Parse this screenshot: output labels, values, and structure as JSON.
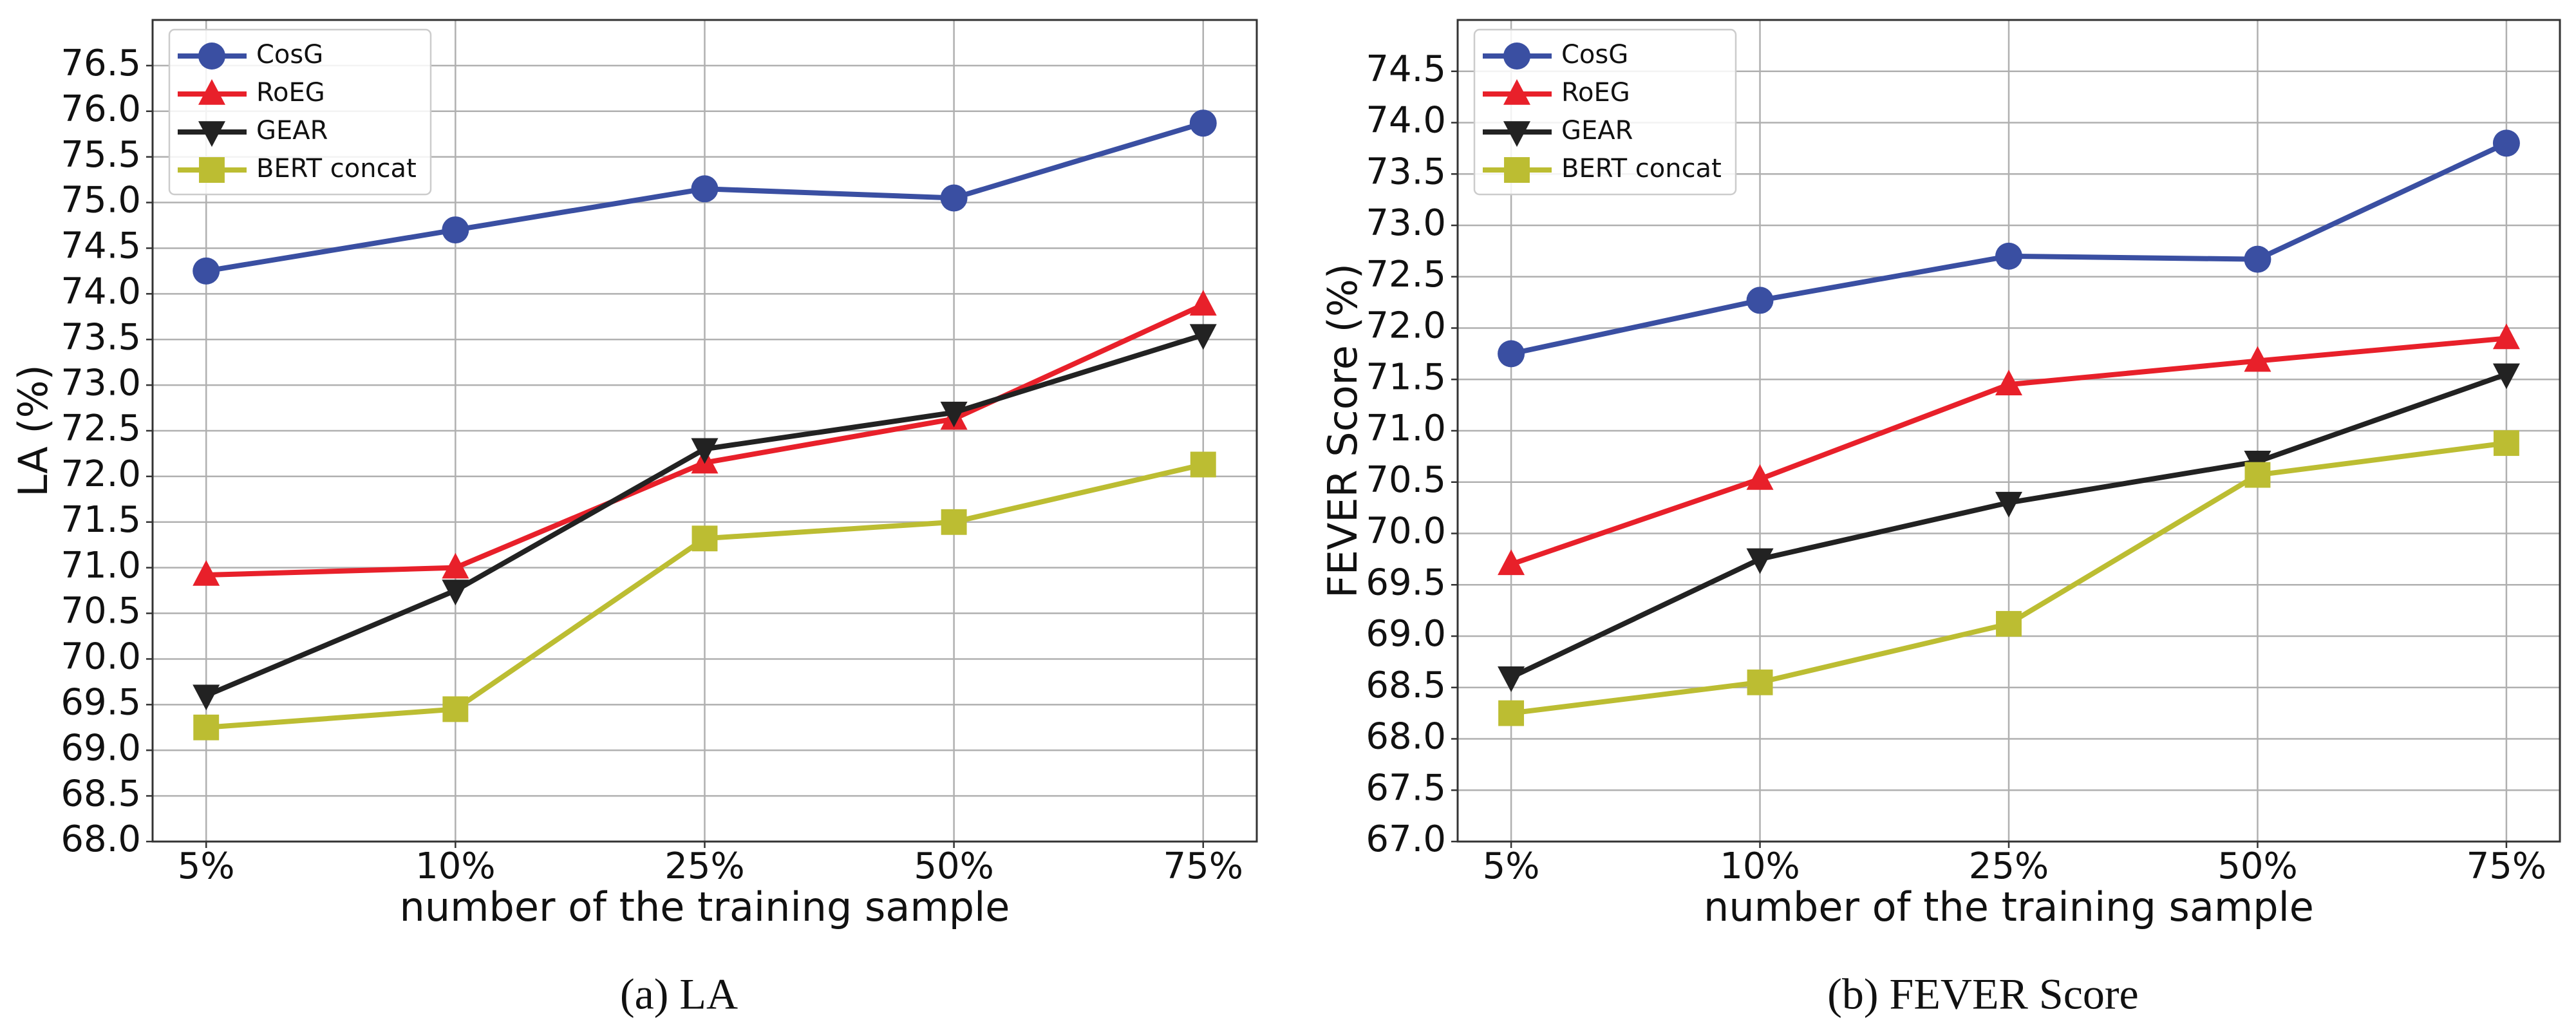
{
  "chart_data": [
    {
      "type": "line",
      "caption": "(a) LA",
      "xlabel": "number of the training sample",
      "ylabel": "LA (%)",
      "categories": [
        "5%",
        "10%",
        "25%",
        "50%",
        "75%"
      ],
      "ylim": [
        68,
        77
      ],
      "yticks": [
        {
          "value": 68,
          "label": "68.0"
        },
        68.5,
        {
          "value": 69,
          "label": "69.0"
        },
        69.5,
        {
          "value": 70,
          "label": "70.0"
        },
        70.5,
        {
          "value": 71,
          "label": "71.0"
        },
        71.5,
        {
          "value": 72,
          "label": "72.0"
        },
        72.5,
        {
          "value": 73,
          "label": "73.0"
        },
        73.5,
        {
          "value": 74,
          "label": "74.0"
        },
        74.5,
        {
          "value": 75,
          "label": "75.0"
        },
        75.5,
        {
          "value": 76,
          "label": "76.0"
        },
        76.5
      ],
      "grid": true,
      "legend": "upper left",
      "series": [
        {
          "name": "CosG",
          "color": "#3a4fa2",
          "marker": "circle",
          "values": [
            74.25,
            74.7,
            75.15,
            75.05,
            75.87
          ]
        },
        {
          "name": "RoEG",
          "color": "#e8202a",
          "marker": "triangle-up",
          "values": [
            70.92,
            71.0,
            72.15,
            72.63,
            73.88
          ]
        },
        {
          "name": "GEAR",
          "color": "#222222",
          "marker": "triangle-down",
          "values": [
            69.6,
            70.75,
            72.3,
            72.7,
            73.55
          ]
        },
        {
          "name": "BERT concat",
          "color": "#bcbd32",
          "marker": "square",
          "values": [
            69.25,
            69.45,
            71.32,
            71.5,
            72.13
          ]
        }
      ]
    },
    {
      "type": "line",
      "caption": "(b) FEVER Score",
      "xlabel": "number of the training sample",
      "ylabel": "FEVER Score (%)",
      "categories": [
        "5%",
        "10%",
        "25%",
        "50%",
        "75%"
      ],
      "ylim": [
        67,
        75
      ],
      "yticks": [
        {
          "value": 67,
          "label": "67.0"
        },
        67.5,
        {
          "value": 68,
          "label": "68.0"
        },
        68.5,
        {
          "value": 69,
          "label": "69.0"
        },
        69.5,
        {
          "value": 70,
          "label": "70.0"
        },
        70.5,
        {
          "value": 71,
          "label": "71.0"
        },
        71.5,
        {
          "value": 72,
          "label": "72.0"
        },
        72.5,
        {
          "value": 73,
          "label": "73.0"
        },
        73.5,
        {
          "value": 74,
          "label": "74.0"
        },
        74.5
      ],
      "grid": true,
      "legend": "upper left",
      "series": [
        {
          "name": "CosG",
          "color": "#3a4fa2",
          "marker": "circle",
          "values": [
            71.75,
            72.27,
            72.7,
            72.67,
            73.8
          ]
        },
        {
          "name": "RoEG",
          "color": "#e8202a",
          "marker": "triangle-up",
          "values": [
            69.7,
            70.53,
            71.45,
            71.68,
            71.9
          ]
        },
        {
          "name": "GEAR",
          "color": "#222222",
          "marker": "triangle-down",
          "values": [
            68.6,
            69.75,
            70.3,
            70.7,
            71.55
          ]
        },
        {
          "name": "BERT concat",
          "color": "#bcbd32",
          "marker": "square",
          "values": [
            68.25,
            68.55,
            69.12,
            70.57,
            70.88
          ]
        }
      ]
    }
  ]
}
